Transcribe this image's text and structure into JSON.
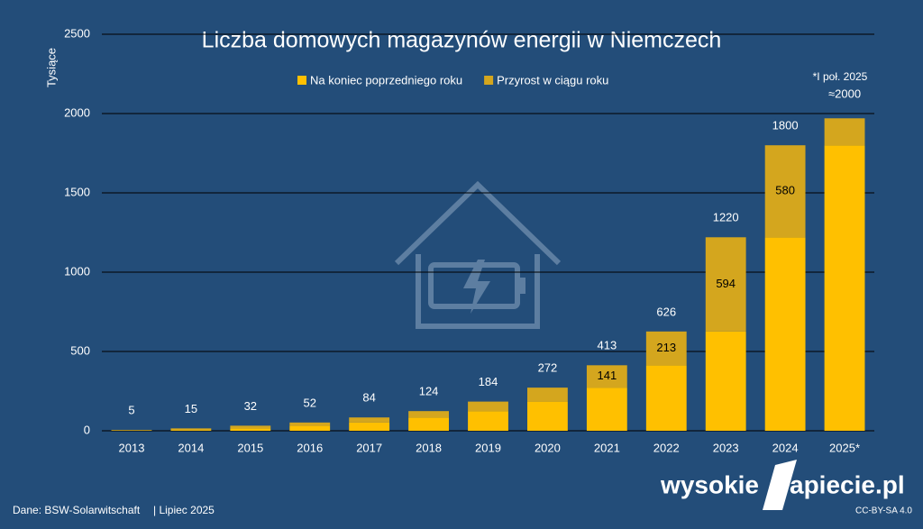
{
  "chart_data": {
    "type": "stacked_bar",
    "title": "Liczba domowych magazynów energii w Niemczech",
    "y_label": "Tysiące",
    "categories": [
      "2013",
      "2014",
      "2015",
      "2016",
      "2017",
      "2018",
      "2019",
      "2020",
      "2021",
      "2022",
      "2023",
      "2024",
      "2025*"
    ],
    "series": [
      {
        "name": "Na koniec poprzedniego roku",
        "color": "#ffc000",
        "values": [
          2,
          5,
          15,
          32,
          52,
          84,
          124,
          184,
          272,
          413,
          626,
          1220,
          1800
        ]
      },
      {
        "name": "Przyrost w ciągu roku",
        "color": "#d4a61e",
        "values": [
          3,
          10,
          17,
          20,
          32,
          40,
          60,
          88,
          141,
          213,
          594,
          580,
          170
        ],
        "value_labels": [
          null,
          null,
          null,
          null,
          null,
          null,
          null,
          null,
          "141",
          "213",
          "594",
          "580",
          null
        ]
      }
    ],
    "totals": {
      "values": [
        5,
        15,
        32,
        52,
        84,
        124,
        184,
        272,
        413,
        626,
        1220,
        1800,
        2000
      ],
      "value_labels": [
        "5",
        "15",
        "32",
        "52",
        "84",
        "124",
        "184",
        "272",
        "413",
        "626",
        "1220",
        "1800",
        "≈2000"
      ]
    },
    "ylim": [
      0,
      2500
    ],
    "yticks": [
      0,
      500,
      1000,
      1500,
      2000,
      2500
    ],
    "grid": true,
    "footnote": "*I poł. 2025",
    "source": "Dane: BSW-Solarwitschaft",
    "date": "|  Lipiec 2025",
    "logo_left": "wysokie",
    "logo_right": "apiecie.pl",
    "license": "CC-BY-SA 4.0"
  }
}
